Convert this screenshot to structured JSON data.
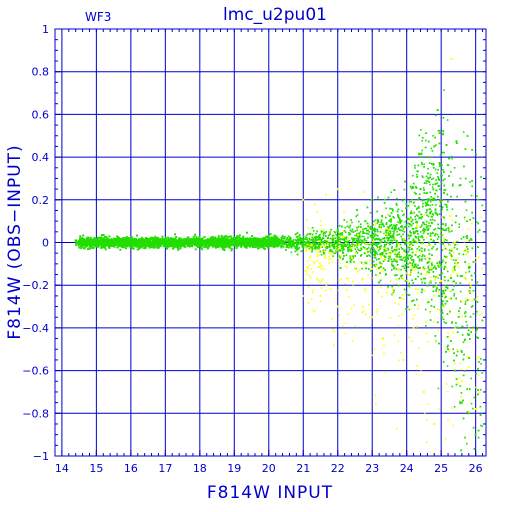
{
  "chart_data": {
    "type": "scatter",
    "title": "lmc_u2pu01",
    "panel_label": "WF3",
    "xlabel": "F814W INPUT",
    "ylabel": "F814W (OBS−INPUT)",
    "xlim": [
      13.8,
      26.3
    ],
    "ylim": [
      -1,
      1
    ],
    "x_ticks": [
      14,
      15,
      16,
      17,
      18,
      19,
      20,
      21,
      22,
      23,
      24,
      25,
      26
    ],
    "y_ticks": [
      -1,
      -0.8,
      -0.6,
      -0.4,
      -0.2,
      0,
      0.2,
      0.4,
      0.6,
      0.8,
      1
    ],
    "x_tick_labels": [
      "14",
      "15",
      "16",
      "17",
      "18",
      "19",
      "20",
      "21",
      "22",
      "23",
      "24",
      "25",
      "26"
    ],
    "y_tick_labels": [
      "−1",
      "−0.8",
      "−0.6",
      "−0.4",
      "−0.2",
      "0",
      "0.2",
      "0.4",
      "0.6",
      "0.8",
      "1"
    ],
    "grid": true,
    "colors": {
      "axes": "#0000cc",
      "grid": "#0000cc",
      "series_green": "#22dd00",
      "series_yellow": "#ffff00"
    },
    "series": [
      {
        "color": "#22dd00",
        "description_points": "dense band; spread widens with magnitude",
        "points": [
          [
            14.4,
            0.01
          ],
          [
            14.6,
            0.0
          ],
          [
            14.8,
            0.01
          ],
          [
            15.0,
            -0.01
          ],
          [
            15.3,
            0.02
          ],
          [
            15.6,
            0.0
          ],
          [
            16.0,
            0.01
          ],
          [
            16.4,
            -0.01
          ],
          [
            16.8,
            0.0
          ],
          [
            17.2,
            0.01
          ],
          [
            17.6,
            0.0
          ],
          [
            18.0,
            -0.01
          ],
          [
            18.4,
            0.02
          ],
          [
            18.8,
            0.0
          ],
          [
            19.2,
            -0.02
          ],
          [
            19.6,
            0.02
          ],
          [
            20.0,
            -0.01
          ],
          [
            20.4,
            0.03
          ],
          [
            20.8,
            -0.03
          ],
          [
            21.2,
            0.04
          ],
          [
            21.6,
            -0.05
          ],
          [
            22.0,
            0.06
          ],
          [
            22.4,
            -0.08
          ],
          [
            22.8,
            0.1
          ],
          [
            23.2,
            -0.12
          ],
          [
            23.6,
            0.15
          ],
          [
            24.0,
            -0.18
          ],
          [
            24.4,
            0.25
          ],
          [
            24.6,
            0.4
          ],
          [
            24.8,
            0.45
          ],
          [
            24.9,
            0.62
          ],
          [
            25.0,
            -0.3
          ],
          [
            25.2,
            -0.5
          ],
          [
            25.4,
            -0.6
          ],
          [
            25.6,
            -0.75
          ],
          [
            25.8,
            -0.8
          ],
          [
            26.0,
            -0.9
          ]
        ]
      },
      {
        "color": "#ffff00",
        "description_points": "sparse outliers",
        "points": [
          [
            21.5,
            -0.25
          ],
          [
            22.0,
            -0.3
          ],
          [
            22.5,
            -0.12
          ],
          [
            23.0,
            -0.35
          ],
          [
            23.3,
            -0.45
          ],
          [
            23.6,
            -0.22
          ],
          [
            23.9,
            -0.55
          ],
          [
            24.2,
            -0.4
          ],
          [
            24.5,
            -0.7
          ],
          [
            24.8,
            -0.85
          ],
          [
            25.1,
            -0.3
          ],
          [
            25.3,
            0.86
          ],
          [
            21.0,
            0.2
          ],
          [
            22.0,
            0.25
          ],
          [
            24.3,
            0.08
          ],
          [
            24.7,
            -0.12
          ],
          [
            25.0,
            -0.18
          ],
          [
            25.6,
            -0.65
          ],
          [
            26.0,
            -0.78
          ]
        ]
      }
    ]
  }
}
